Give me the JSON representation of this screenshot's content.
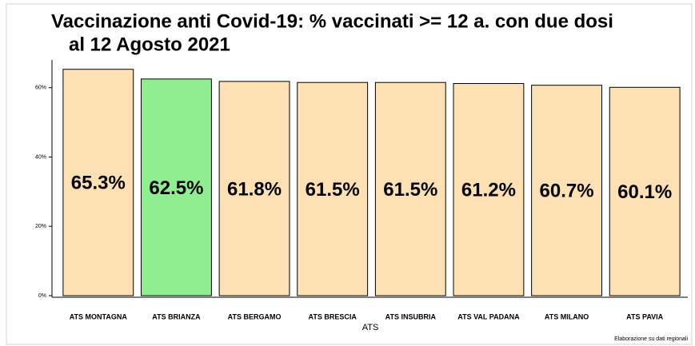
{
  "chart_data": {
    "type": "bar",
    "title": [
      "Vaccinazione anti Covid-19: % vaccinati >= 12 a. con due dosi",
      "al 12 Agosto 2021"
    ],
    "categories": [
      "ATS MONTAGNA",
      "ATS BRIANZA",
      "ATS BERGAMO",
      "ATS BRESCIA",
      "ATS INSUBRIA",
      "ATS VAL PADANA",
      "ATS MILANO",
      "ATS PAVIA"
    ],
    "values": [
      65.3,
      62.5,
      61.8,
      61.5,
      61.5,
      61.2,
      60.7,
      60.1
    ],
    "value_labels": [
      "65.3%",
      "62.5%",
      "61.8%",
      "61.5%",
      "61.5%",
      "61.2%",
      "60.7%",
      "60.1%"
    ],
    "colors": [
      "#fde0b4",
      "#90ee90",
      "#fde0b4",
      "#fde0b4",
      "#fde0b4",
      "#fde0b4",
      "#fde0b4",
      "#fde0b4"
    ],
    "xlabel": "ATS",
    "ylim": [
      0,
      68
    ],
    "yticks": [
      {
        "value": 0,
        "label": "0%"
      },
      {
        "value": 20,
        "label": "20%"
      },
      {
        "value": 40,
        "label": "40%"
      },
      {
        "value": 60,
        "label": "60%"
      }
    ],
    "note": "Elaborazione su dati regionali"
  }
}
